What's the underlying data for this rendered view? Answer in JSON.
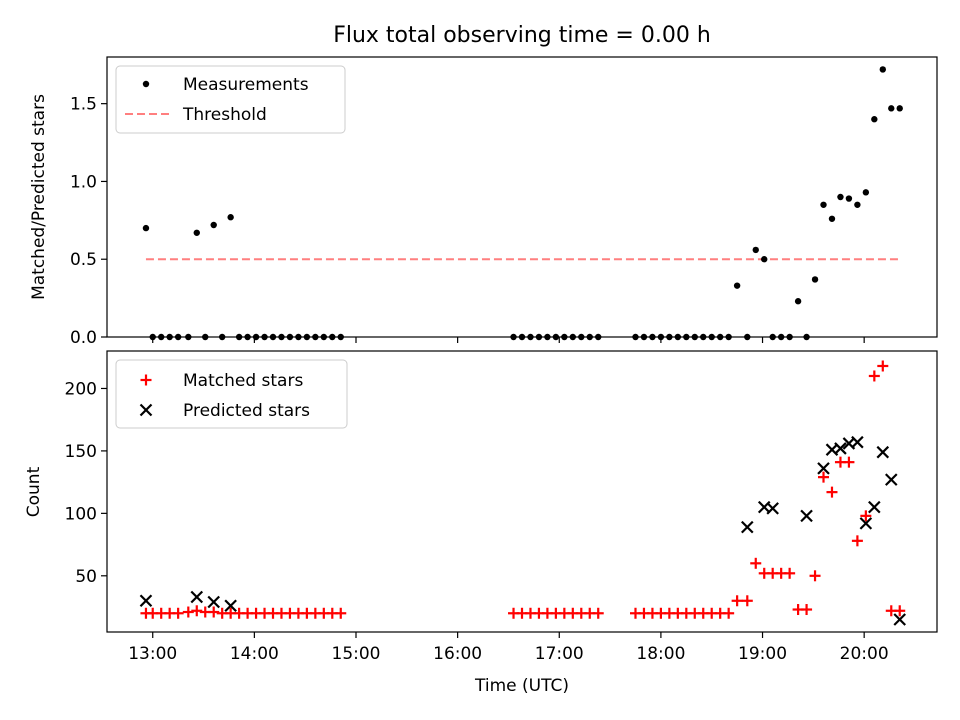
{
  "title": "Flux total observing time = 0.00 h",
  "chart_data": [
    {
      "type": "scatter",
      "ylabel": "Matched/Predicted stars",
      "xlabel": "",
      "ylim": [
        0,
        1.8
      ],
      "yticks": [
        0.0,
        0.5,
        1.0,
        1.5
      ],
      "ytick_labels": [
        "0.0",
        "0.5",
        "1.0",
        "1.5"
      ],
      "legend_position": "top-left",
      "threshold": {
        "name": "Threshold",
        "y": 0.5,
        "x_start": "12:56",
        "x_end": "20:22",
        "color": "#ff7f7f"
      },
      "series": [
        {
          "name": "Measurements",
          "color": "#000000",
          "x": [
            "12:56",
            "13:00",
            "13:05",
            "13:10",
            "13:15",
            "13:21",
            "13:26",
            "13:31",
            "13:36",
            "13:41",
            "13:46",
            "13:51",
            "13:56",
            "14:01",
            "14:06",
            "14:11",
            "14:16",
            "14:21",
            "14:26",
            "14:31",
            "14:36",
            "14:41",
            "14:46",
            "14:51",
            "16:33",
            "16:38",
            "16:43",
            "16:48",
            "16:53",
            "16:58",
            "17:03",
            "17:08",
            "17:13",
            "17:18",
            "17:23",
            "17:45",
            "17:50",
            "17:55",
            "18:00",
            "18:05",
            "18:10",
            "18:15",
            "18:20",
            "18:25",
            "18:30",
            "18:35",
            "18:40",
            "18:45",
            "18:51",
            "18:56",
            "19:01",
            "19:06",
            "19:11",
            "19:16",
            "19:21",
            "19:26",
            "19:31",
            "19:36",
            "19:41",
            "19:46",
            "19:51",
            "19:56",
            "20:01",
            "20:06",
            "20:11",
            "20:16",
            "20:21"
          ],
          "y": [
            0.7,
            0,
            0,
            0,
            0,
            0,
            0.67,
            0,
            0.72,
            0,
            0.77,
            0,
            0,
            0,
            0,
            0,
            0,
            0,
            0,
            0,
            0,
            0,
            0,
            0,
            0,
            0,
            0,
            0,
            0,
            0,
            0,
            0,
            0,
            0,
            0,
            0,
            0,
            0,
            0,
            0,
            0,
            0,
            0,
            0,
            0,
            0,
            0,
            0.33,
            0,
            0.56,
            0.5,
            0,
            0,
            0,
            0.23,
            0,
            0.37,
            0.85,
            0.76,
            0.9,
            0.89,
            0.85,
            0.93,
            1.4,
            1.72,
            1.47,
            1.47
          ]
        }
      ]
    },
    {
      "type": "scatter",
      "xlabel": "Time (UTC)",
      "ylabel": "Count",
      "ylim": [
        5,
        230
      ],
      "yticks": [
        50,
        100,
        150,
        200
      ],
      "ytick_labels": [
        "50",
        "100",
        "150",
        "200"
      ],
      "xlim": [
        "12:33",
        "20:43"
      ],
      "xticks": [
        "13:00",
        "14:00",
        "15:00",
        "16:00",
        "17:00",
        "18:00",
        "19:00",
        "20:00"
      ],
      "xtick_labels": [
        "13:00",
        "14:00",
        "15:00",
        "16:00",
        "17:00",
        "18:00",
        "19:00",
        "20:00"
      ],
      "legend_position": "top-left",
      "series": [
        {
          "name": "Matched stars",
          "color": "#ff0000",
          "marker": "+",
          "x": [
            "12:56",
            "13:00",
            "13:05",
            "13:10",
            "13:15",
            "13:21",
            "13:26",
            "13:31",
            "13:36",
            "13:41",
            "13:46",
            "13:51",
            "13:56",
            "14:01",
            "14:06",
            "14:11",
            "14:16",
            "14:21",
            "14:26",
            "14:31",
            "14:36",
            "14:41",
            "14:46",
            "14:51",
            "16:33",
            "16:38",
            "16:43",
            "16:48",
            "16:53",
            "16:58",
            "17:03",
            "17:08",
            "17:13",
            "17:18",
            "17:23",
            "17:45",
            "17:50",
            "17:55",
            "18:00",
            "18:05",
            "18:10",
            "18:15",
            "18:20",
            "18:25",
            "18:30",
            "18:35",
            "18:40",
            "18:45",
            "18:51",
            "18:56",
            "19:01",
            "19:06",
            "19:11",
            "19:16",
            "19:21",
            "19:26",
            "19:31",
            "19:36",
            "19:41",
            "19:46",
            "19:51",
            "19:56",
            "20:01",
            "20:06",
            "20:11",
            "20:16",
            "20:21"
          ],
          "y": [
            20,
            20,
            20,
            20,
            20,
            21,
            22,
            21,
            21,
            20,
            20,
            20,
            20,
            20,
            20,
            20,
            20,
            20,
            20,
            20,
            20,
            20,
            20,
            20,
            20,
            20,
            20,
            20,
            20,
            20,
            20,
            20,
            20,
            20,
            20,
            20,
            20,
            20,
            20,
            20,
            20,
            20,
            20,
            20,
            20,
            20,
            20,
            30,
            30,
            60,
            52,
            52,
            52,
            52,
            23,
            23,
            50,
            129,
            117,
            141,
            141,
            78,
            98,
            210,
            218,
            22,
            22
          ]
        },
        {
          "name": "Predicted stars",
          "color": "#000000",
          "marker": "x",
          "x": [
            "12:56",
            "13:26",
            "13:36",
            "13:46",
            "18:51",
            "19:01",
            "19:06",
            "19:26",
            "19:36",
            "19:41",
            "19:46",
            "19:51",
            "19:56",
            "20:01",
            "20:06",
            "20:11",
            "20:16",
            "20:21"
          ],
          "y": [
            30,
            33,
            29,
            26,
            89,
            105,
            104,
            98,
            136,
            151,
            152,
            156,
            157,
            92,
            105,
            149,
            127,
            15
          ]
        }
      ]
    }
  ]
}
